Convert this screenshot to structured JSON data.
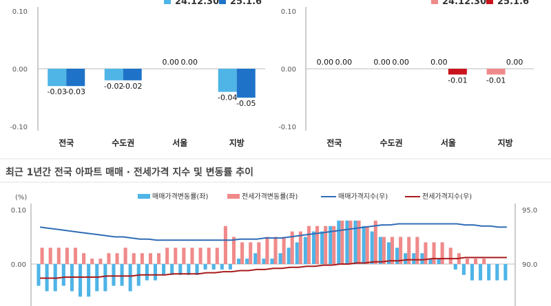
{
  "colors": {
    "sale_prev": "#4fb4e6",
    "sale_curr": "#1e73c8",
    "jeonse_prev": "#f08a8a",
    "jeonse_curr": "#c9141e",
    "sale_index_line": "#2f6cb5",
    "jeonse_index_line": "#a81a1a",
    "grid": "#cccccc",
    "axis": "#999999"
  },
  "chart_data": [
    {
      "type": "bar",
      "panel": "sale",
      "categories": [
        "전국",
        "수도권",
        "서울",
        "지방"
      ],
      "series": [
        {
          "name": "24.12.30",
          "values": [
            -0.03,
            -0.02,
            0.0,
            -0.04
          ]
        },
        {
          "name": "25.1.6",
          "values": [
            -0.03,
            -0.02,
            0.0,
            -0.05
          ]
        }
      ],
      "data_labels": [
        [
          "-0.03",
          "-0.03"
        ],
        [
          "-0.02",
          "-0.02"
        ],
        [
          "0.00",
          "0.00"
        ],
        [
          "-0.04",
          "-0.05"
        ]
      ],
      "ylim": [
        -0.1,
        0.1
      ],
      "yticks": [
        "0.10",
        "0.00",
        "-0.10"
      ],
      "legend": "top-right"
    },
    {
      "type": "bar",
      "panel": "jeonse",
      "categories": [
        "전국",
        "수도권",
        "서울",
        "지방"
      ],
      "series": [
        {
          "name": "24.12.30",
          "values": [
            0.0,
            0.0,
            0.0,
            -0.01
          ]
        },
        {
          "name": "25.1.6",
          "values": [
            0.0,
            0.0,
            -0.01,
            0.0
          ]
        }
      ],
      "data_labels": [
        [
          "0.00",
          "0.00"
        ],
        [
          "0.00",
          "0.00"
        ],
        [
          "0.00",
          "-0.01"
        ],
        [
          "-0.01",
          "0.00"
        ]
      ],
      "ylim": [
        -0.1,
        0.1
      ],
      "yticks": [
        "0.10",
        "0.00",
        "-0.10"
      ],
      "legend": "top-right"
    },
    {
      "type": "bar",
      "panel": "trend",
      "title": "최근 1년간 전국 아파트 매매 · 전세가격 지수 및 변동률 추이",
      "ylabel_left": "(%)",
      "yticks_left": [
        "0.10",
        "0.00"
      ],
      "yticks_right": [
        "95.0",
        "90.0"
      ],
      "ylim_left": [
        -0.1,
        0.1
      ],
      "ylim_right": [
        85.0,
        95.0
      ],
      "legend": [
        "매매가격변동률(좌)",
        "전세가격변동률(좌)",
        "매매가격지수(우)",
        "전세가격지수(우)"
      ],
      "series": [
        {
          "name": "매매가격변동률(좌)",
          "values": [
            -0.04,
            -0.05,
            -0.05,
            -0.04,
            -0.05,
            -0.06,
            -0.06,
            -0.05,
            -0.05,
            -0.04,
            -0.04,
            -0.05,
            -0.04,
            -0.03,
            -0.03,
            -0.02,
            -0.02,
            -0.02,
            -0.02,
            -0.02,
            -0.01,
            -0.01,
            -0.01,
            -0.01,
            0.01,
            0.01,
            0.02,
            0.01,
            0.01,
            0.02,
            0.03,
            0.04,
            0.05,
            0.06,
            0.06,
            0.07,
            0.08,
            0.08,
            0.08,
            0.07,
            0.06,
            0.05,
            0.04,
            0.03,
            0.02,
            0.02,
            0.02,
            0.01,
            0.01,
            0.0,
            -0.01,
            -0.02,
            -0.03,
            -0.03,
            -0.03,
            -0.03,
            -0.03
          ]
        },
        {
          "name": "전세가격변동률(좌)",
          "values": [
            0.03,
            0.03,
            0.03,
            0.03,
            0.03,
            0.02,
            0.01,
            0.01,
            0.02,
            0.02,
            0.03,
            0.02,
            0.02,
            0.02,
            0.02,
            0.03,
            0.03,
            0.03,
            0.03,
            0.03,
            0.03,
            0.03,
            0.07,
            0.05,
            0.04,
            0.04,
            0.04,
            0.05,
            0.05,
            0.05,
            0.06,
            0.06,
            0.07,
            0.07,
            0.07,
            0.07,
            0.08,
            0.08,
            0.08,
            0.07,
            0.08,
            0.05,
            0.05,
            0.05,
            0.05,
            0.05,
            0.04,
            0.04,
            0.04,
            0.03,
            0.02,
            0.01,
            0.01,
            0.01,
            0.0,
            0.0,
            0.0
          ]
        },
        {
          "name": "매매가격지수(우)",
          "values": [
            93.4,
            93.3,
            93.2,
            93.1,
            93.0,
            92.9,
            92.8,
            92.7,
            92.6,
            92.5,
            92.5,
            92.4,
            92.3,
            92.3,
            92.2,
            92.2,
            92.2,
            92.2,
            92.2,
            92.2,
            92.2,
            92.2,
            92.2,
            92.2,
            92.3,
            92.3,
            92.3,
            92.4,
            92.4,
            92.4,
            92.5,
            92.6,
            92.7,
            92.8,
            92.9,
            93.0,
            93.1,
            93.2,
            93.3,
            93.4,
            93.5,
            93.6,
            93.6,
            93.7,
            93.7,
            93.7,
            93.7,
            93.7,
            93.7,
            93.7,
            93.7,
            93.6,
            93.6,
            93.5,
            93.5,
            93.4,
            93.4
          ]
        },
        {
          "name": "전세가격지수(우)",
          "values": [
            88.7,
            88.7,
            88.7,
            88.8,
            88.8,
            88.8,
            88.8,
            88.8,
            88.9,
            88.9,
            88.9,
            88.9,
            89.0,
            89.0,
            89.0,
            89.0,
            89.1,
            89.1,
            89.1,
            89.1,
            89.2,
            89.2,
            89.3,
            89.3,
            89.4,
            89.4,
            89.5,
            89.5,
            89.6,
            89.6,
            89.7,
            89.7,
            89.8,
            89.8,
            89.9,
            89.9,
            90.0,
            90.0,
            90.1,
            90.1,
            90.2,
            90.2,
            90.3,
            90.3,
            90.4,
            90.4,
            90.4,
            90.5,
            90.5,
            90.5,
            90.5,
            90.6,
            90.6,
            90.6,
            90.6,
            90.6,
            90.6
          ]
        }
      ]
    }
  ]
}
